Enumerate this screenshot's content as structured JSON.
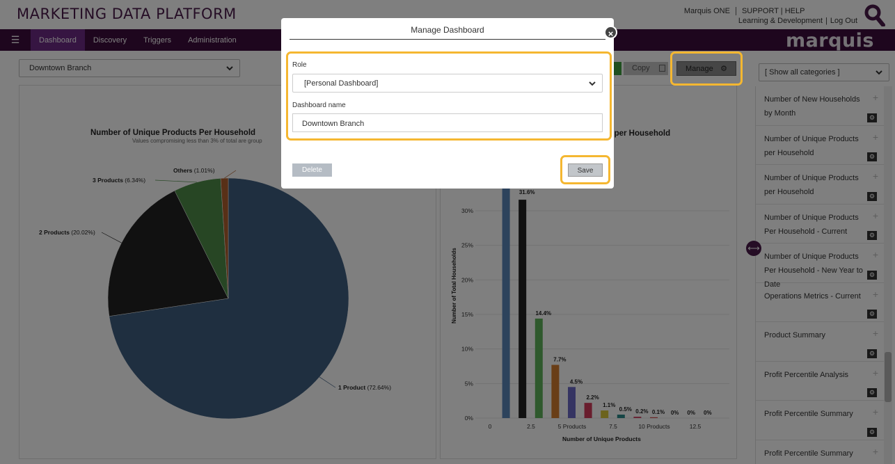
{
  "header": {
    "app_title": "MARKETING DATA PLATFORM",
    "links": {
      "marquis_one": "Marquis ONE",
      "support": "SUPPORT | HELP",
      "learning": "Learning & Development",
      "logout": "Log Out"
    },
    "brand": "marquis"
  },
  "nav": {
    "items": [
      {
        "label": "Dashboard",
        "active": true
      },
      {
        "label": "Discovery"
      },
      {
        "label": "Triggers"
      },
      {
        "label": "Administration"
      }
    ]
  },
  "toolbar": {
    "branch_value": "Downtown Branch",
    "copy_label": "Copy",
    "manage_label": "Manage"
  },
  "categories": {
    "filter_value": "[ Show all categories ]",
    "items": [
      {
        "label": "Number of New Households by Month"
      },
      {
        "label": "Number of Unique Products per Household"
      },
      {
        "label": "Number of Unique Products per Household"
      },
      {
        "label": "Number of Unique Products Per Household - Current"
      },
      {
        "label": "Number of Unique Products Per Household - New Year to Date"
      },
      {
        "label": "Operations Metrics - Current"
      },
      {
        "label": "Product Summary"
      },
      {
        "label": "Profit Percentile Analysis"
      },
      {
        "label": "Profit Percentile Summary"
      },
      {
        "label": "Profit Percentile Summary"
      }
    ]
  },
  "pie_chart": {
    "title": "Number of Unique Products Per Household",
    "subtitle": "Values compromising less than 3% of total are group",
    "colors": [
      "#3f5e80",
      "#222222",
      "#4e8d48",
      "#b0602e"
    ]
  },
  "bar_chart": {
    "title_fragment": "s per Household",
    "xlabel": "Number of Unique Products",
    "ylabel": "Number of Total Households",
    "y_ticks": [
      "0%",
      "5%",
      "10%",
      "15%",
      "20%",
      "25%",
      "30%"
    ],
    "x_ticks": [
      "0",
      "2.5",
      "5 Products",
      "7.5",
      "10 Products",
      "12.5"
    ],
    "data_labels": [
      "31.6%",
      "14.4%",
      "7.7%",
      "4.5%",
      "2.2%",
      "1.1%",
      "0.5%",
      "0.2%",
      "0.1%",
      "0%",
      "0%",
      "0%"
    ]
  },
  "chart_data": [
    {
      "type": "pie",
      "title": "Number of Unique Products Per Household",
      "subtitle": "Values compromising less than 3% of total are group",
      "categories": [
        "1 Product",
        "2 Products",
        "3 Products",
        "Others"
      ],
      "values": [
        72.64,
        20.02,
        6.34,
        1.01
      ],
      "labels": [
        "1 Product (72.64%)",
        "2 Products (20.02%)",
        "3 Products (6.34%)",
        "Others (1.01%)"
      ]
    },
    {
      "type": "bar",
      "xlabel": "Number of Unique Products",
      "ylabel": "Number of Total Households",
      "x": [
        1,
        2,
        3,
        4,
        5,
        6,
        7,
        8,
        9,
        10,
        11,
        12,
        13
      ],
      "values": [
        null,
        31.6,
        14.4,
        7.7,
        4.5,
        2.2,
        1.1,
        0.5,
        0.2,
        0.1,
        0,
        0,
        0
      ],
      "ylim": [
        0,
        32
      ],
      "colors": [
        "#5b87b8",
        "#222222",
        "#5fb35a",
        "#d27c2f",
        "#6b68c4",
        "#d23a5a",
        "#d8c63a",
        "#2a8a8a",
        "#d24a6a",
        "#d04a4a"
      ]
    }
  ],
  "modal": {
    "title": "Manage Dashboard",
    "role_label": "Role",
    "role_value": "[Personal Dashboard]",
    "name_label": "Dashboard name",
    "name_value": "Downtown Branch",
    "delete_label": "Delete",
    "save_label": "Save"
  }
}
